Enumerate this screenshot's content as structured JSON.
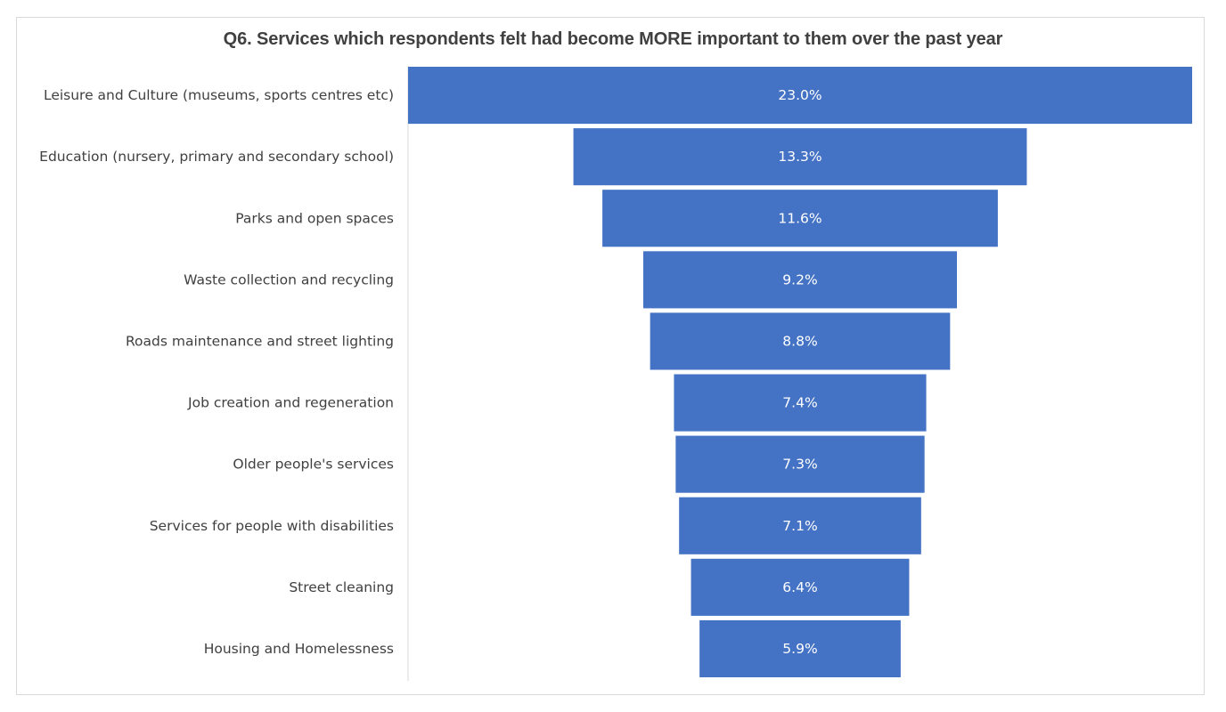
{
  "chart_data": {
    "type": "bar",
    "orientation": "horizontal",
    "style": "funnel",
    "title": "Q6. Services which respondents felt had become MORE important to them over the past year",
    "categories": [
      "Leisure and Culture (museums, sports centres etc)",
      "Education (nursery, primary and secondary school)",
      "Parks and open spaces",
      "Waste collection and recycling",
      "Roads maintenance and street lighting",
      "Job creation and regeneration",
      "Older people's services",
      "Services for people with disabilities",
      "Street cleaning",
      "Housing and Homelessness"
    ],
    "values": [
      23.0,
      13.3,
      11.6,
      9.2,
      8.8,
      7.4,
      7.3,
      7.1,
      6.4,
      5.9
    ],
    "value_labels": [
      "23.0%",
      "13.3%",
      "11.6%",
      "9.2%",
      "8.8%",
      "7.4%",
      "7.3%",
      "7.1%",
      "6.4%",
      "5.9%"
    ],
    "bar_color": "#4472c4",
    "label_color": "#404040",
    "value_label_color": "#ffffff",
    "grid": false,
    "legend": "none"
  }
}
